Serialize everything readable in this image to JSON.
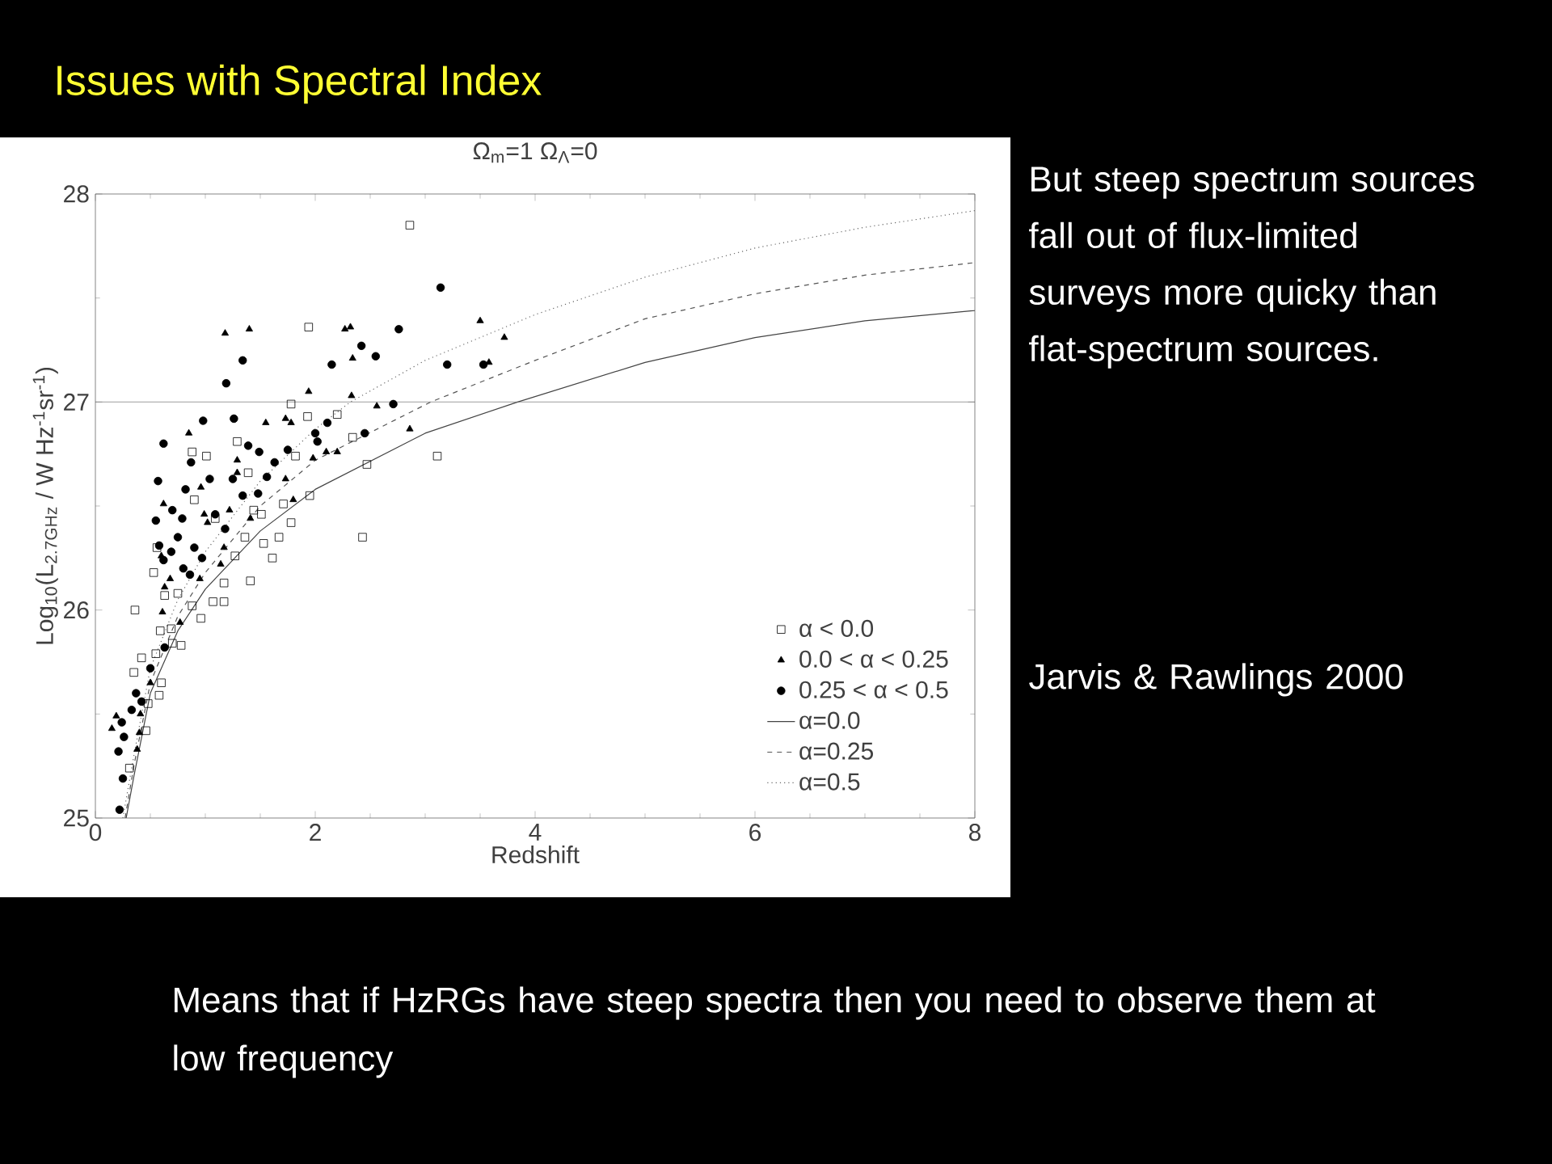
{
  "chart_data": {
    "type": "scatter",
    "title": "Issues with Spectral Index",
    "xlabel": "Redshift",
    "ylabel": "Log$_{10}$(L$_{2.7GHz}$ / W Hz$^{-1}$sr$^{-1}$)",
    "xlim": [
      0,
      8
    ],
    "ylim": [
      25,
      28
    ],
    "xticks": [
      0,
      2,
      4,
      6,
      8
    ],
    "yticks": [
      25,
      26,
      27,
      28
    ],
    "legend": "bottom right",
    "ref_lines": [
      {
        "axis": "y",
        "value": 27,
        "color": "#666666"
      }
    ],
    "annotations": [
      "Ω$_{m}$=1  Ω$_{Λ}$=0",
      "But steep spectrum sources fall out of flux-limited surveys more quicky than flat-spectrum sources.",
      "Jarvis & Rawlings 2000",
      "Means that if HzRGs have steep spectra then you need to observe them at low frequency"
    ],
    "series": [
      {
        "name": "α < 0.0",
        "marker": "square",
        "color": "#000000",
        "x": [
          2.86,
          1.94,
          1.78,
          1.93,
          2.2,
          2.34,
          2.47,
          3.11,
          2.43,
          1.29,
          1.01,
          0.88,
          0.9,
          1.39,
          1.82,
          1.95,
          1.78,
          1.67,
          1.53,
          1.61,
          1.41,
          1.27,
          1.17,
          1.17,
          1.07,
          0.96,
          0.88,
          0.75,
          0.63,
          0.53,
          0.56,
          0.36,
          0.59,
          0.69,
          0.78,
          0.55,
          0.42,
          0.35,
          0.6,
          0.58,
          0.48,
          0.31,
          0.7,
          1.51,
          1.09,
          1.44,
          1.36,
          1.71,
          0.46
        ],
        "values": [
          27.85,
          27.36,
          26.99,
          26.93,
          26.94,
          26.83,
          26.7,
          26.74,
          26.35,
          26.81,
          26.74,
          26.76,
          26.53,
          26.66,
          26.74,
          26.55,
          26.42,
          26.35,
          26.32,
          26.25,
          26.14,
          26.26,
          26.13,
          26.04,
          26.04,
          25.96,
          26.02,
          26.08,
          26.07,
          26.18,
          26.3,
          26.0,
          25.9,
          25.91,
          25.83,
          25.79,
          25.77,
          25.7,
          25.65,
          25.59,
          25.55,
          25.24,
          25.84,
          26.46,
          26.44,
          26.48,
          26.35,
          26.51,
          25.42
        ]
      },
      {
        "name": "0.0 < α < 0.25",
        "marker": "triangle",
        "color": "#000000",
        "x": [
          1.18,
          1.4,
          2.27,
          2.32,
          2.34,
          1.94,
          2.33,
          2.56,
          2.86,
          3.5,
          3.72,
          3.58,
          1.55,
          0.85,
          1.73,
          1.78,
          2.1,
          2.2,
          1.98,
          1.73,
          1.8,
          1.29,
          0.96,
          0.99,
          0.62,
          0.6,
          0.68,
          0.63,
          0.61,
          0.77,
          1.14,
          1.17,
          1.02,
          1.41,
          1.22,
          0.95,
          0.41,
          0.4,
          0.38,
          0.15,
          0.19,
          0.5,
          1.29
        ],
        "values": [
          27.33,
          27.35,
          27.35,
          27.36,
          27.21,
          27.05,
          27.03,
          26.98,
          26.87,
          27.39,
          27.31,
          27.19,
          26.9,
          26.85,
          26.92,
          26.9,
          26.76,
          26.76,
          26.73,
          26.63,
          26.53,
          26.66,
          26.59,
          26.46,
          26.51,
          26.26,
          26.15,
          26.11,
          25.99,
          25.94,
          26.22,
          26.3,
          26.42,
          26.44,
          26.48,
          26.15,
          25.5,
          25.41,
          25.33,
          25.43,
          25.49,
          25.65,
          26.72
        ]
      },
      {
        "name": "0.25 < α < 0.5",
        "marker": "circle",
        "color": "#000000",
        "x": [
          3.14,
          2.76,
          3.2,
          3.53,
          2.42,
          2.55,
          2.15,
          1.34,
          1.19,
          2.71,
          2.45,
          2.11,
          2.0,
          2.02,
          1.26,
          0.98,
          0.62,
          1.39,
          1.49,
          1.75,
          1.63,
          1.56,
          0.87,
          1.25,
          1.04,
          0.57,
          0.82,
          1.34,
          1.48,
          0.7,
          0.55,
          0.79,
          1.09,
          1.18,
          0.75,
          0.58,
          0.9,
          0.62,
          0.69,
          0.8,
          0.86,
          0.97,
          0.63,
          0.5,
          0.37,
          0.42,
          0.33,
          0.24,
          0.26,
          0.21,
          0.25,
          0.22
        ],
        "values": [
          27.55,
          27.35,
          27.18,
          27.18,
          27.27,
          27.22,
          27.18,
          27.2,
          27.09,
          26.99,
          26.85,
          26.9,
          26.85,
          26.81,
          26.92,
          26.91,
          26.8,
          26.79,
          26.76,
          26.77,
          26.71,
          26.64,
          26.71,
          26.63,
          26.63,
          26.62,
          26.58,
          26.55,
          26.56,
          26.48,
          26.43,
          26.44,
          26.46,
          26.39,
          26.35,
          26.31,
          26.3,
          26.24,
          26.28,
          26.2,
          26.17,
          26.25,
          25.82,
          25.72,
          25.6,
          25.56,
          25.52,
          25.46,
          25.39,
          25.32,
          25.19,
          25.04
        ]
      },
      {
        "name": "α=0.0",
        "type": "line",
        "line_style": "solid",
        "color": "#444444",
        "x": [
          0.28,
          0.35,
          0.5,
          0.75,
          1,
          1.5,
          2,
          3,
          3.84,
          5,
          6,
          7,
          8
        ],
        "values": [
          25.0,
          25.2,
          25.6,
          25.9,
          26.1,
          26.38,
          26.58,
          26.85,
          27.0,
          27.19,
          27.31,
          27.39,
          27.44
        ]
      },
      {
        "name": "α=0.25",
        "type": "line",
        "line_style": "dashed",
        "color": "#555555",
        "x": [
          0.27,
          0.35,
          0.5,
          0.75,
          1,
          1.5,
          2,
          3.05,
          4,
          5,
          6,
          7,
          8
        ],
        "values": [
          25.0,
          25.25,
          25.65,
          25.97,
          26.18,
          26.5,
          26.72,
          27.0,
          27.2,
          27.4,
          27.52,
          27.61,
          27.67
        ]
      },
      {
        "name": "α=0.5",
        "type": "line",
        "line_style": "dotted",
        "color": "#666666",
        "x": [
          0.25,
          0.35,
          0.5,
          0.75,
          1,
          1.5,
          2,
          2.32,
          3,
          4,
          5,
          6,
          7,
          8
        ],
        "values": [
          25.0,
          25.3,
          25.72,
          26.05,
          26.28,
          26.62,
          26.87,
          27.0,
          27.2,
          27.42,
          27.6,
          27.74,
          27.84,
          27.92
        ]
      }
    ]
  }
}
